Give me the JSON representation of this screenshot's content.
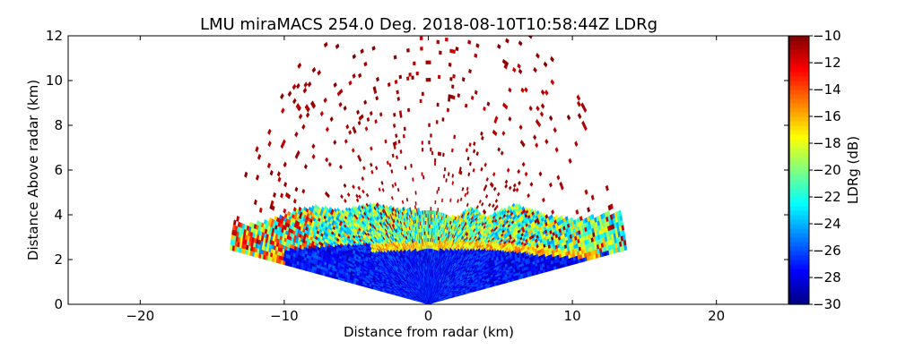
{
  "chart_data": {
    "type": "heatmap",
    "title": "LMU miraMACS 254.0 Deg. 2018-08-10T10:58:44Z  LDRg",
    "xlabel": "Distance from radar (km)",
    "ylabel": "Distance Above radar  (km)",
    "xlim": [
      -25,
      25
    ],
    "ylim": [
      0,
      12
    ],
    "x_ticks": [
      -20,
      -10,
      0,
      10,
      20
    ],
    "x_tick_labels": [
      "−20",
      "−10",
      "0",
      "10",
      "20"
    ],
    "y_ticks": [
      0,
      2,
      4,
      6,
      8,
      10,
      12
    ],
    "y_tick_labels": [
      "0",
      "2",
      "4",
      "6",
      "8",
      "10",
      "12"
    ],
    "colorbar": {
      "label": "LDRg (dB)",
      "range": [
        -30,
        -10
      ],
      "colormap": "jet",
      "ticks": [
        -30,
        -28,
        -26,
        -24,
        -22,
        -20,
        -18,
        -16,
        -14,
        -12,
        -10
      ],
      "tick_labels": [
        "−30",
        "−28",
        "−26",
        "−24",
        "−22",
        "−20",
        "−18",
        "−16",
        "−14",
        "−12",
        "−10"
      ]
    },
    "scan": {
      "elevation_min_deg": 10,
      "elevation_max_deg": 170,
      "max_range_km": 14
    },
    "cloud_layers": [
      {
        "name": "dense low cloud",
        "x_range": [
          -13.5,
          13.5
        ],
        "top_km": [
          1.9,
          2.9
        ],
        "ldr_db": -28
      },
      {
        "name": "cloud top band",
        "x_range": [
          -12,
          13.5
        ],
        "top_km": [
          3.0,
          4.5
        ],
        "ldr_db": -22
      },
      {
        "name": "melting layer",
        "x_range": [
          -3,
          12
        ],
        "height_km": 2.8,
        "ldr_db": -16
      },
      {
        "name": "insect echoes",
        "height_range_km": [
          3.5,
          12
        ],
        "ldr_db": -10
      }
    ]
  }
}
